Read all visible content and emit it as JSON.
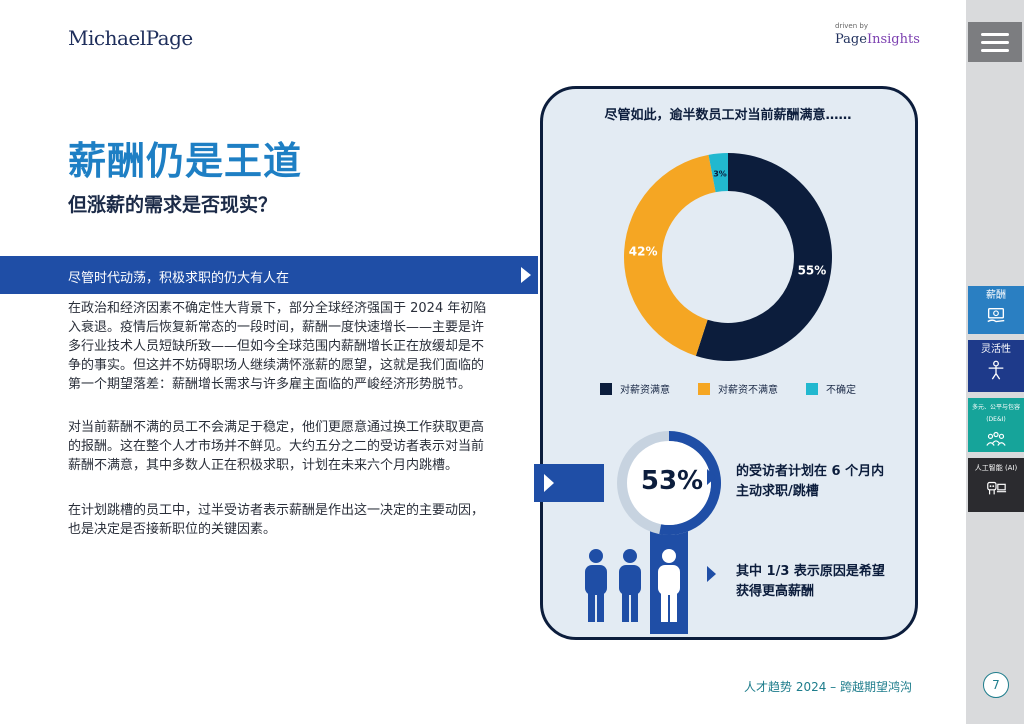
{
  "header": {
    "logo": "MichaelPage",
    "driven_by": "driven by",
    "page_insights_a": "Page",
    "page_insights_b": "Insights"
  },
  "title": "薪酬仍是王道",
  "subtitle": "但涨薪的需求是否现实？",
  "banner": "尽管时代动荡，积极求职的仍大有人在",
  "paragraphs": [
    "在政治和经济因素不确定性大背景下，部分全球经济强国于 2024 年初陷入衰退。疫情后恢复新常态的一段时间，薪酬一度快速增长——主要是许多行业技术人员短缺所致——但如今全球范围内薪酬增长正在放缓却是不争的事实。但这并不妨碍职场人继续满怀涨薪的愿望，这就是我们面临的第一个期望落差：薪酬增长需求与许多雇主面临的严峻经济形势脱节。",
    "对当前薪酬不满的员工不会满足于稳定，他们更愿意通过换工作获取更高的报酬。这在整个人才市场并不鲜见。大约五分之二的受访者表示对当前薪酬不满意，其中多数人正在积极求职，计划在未来六个月内跳槽。",
    "在计划跳槽的员工中，过半受访者表示薪酬是作出这一决定的主要动因，也是决定是否接新职位的关键因素。"
  ],
  "panel": {
    "title": "尽管如此，逾半数员工对当前薪酬满意……",
    "stat_pct": "53%",
    "stat_text": "的受访者计划在 6 个月内主动求职/跳槽",
    "stat_fraction": 0.53,
    "reason_text": "其中 1/3 表示原因是希望获得更高薪酬"
  },
  "chart_data": {
    "type": "pie",
    "donut": true,
    "categories": [
      "对薪资满意",
      "对薪资不满意",
      "不确定"
    ],
    "values": [
      55,
      42,
      3
    ],
    "labels": [
      "55%",
      "42%",
      "3%"
    ],
    "colors": [
      "#0c1d3c",
      "#f5a623",
      "#22b8cf"
    ],
    "legend_position": "bottom"
  },
  "sidebar": {
    "tabs": [
      "薪酬",
      "灵活性",
      "多元、公平与包容 (DE&I)",
      "人工智能 (AI)"
    ],
    "page_number": "7"
  },
  "footer": "人才趋势 2024 – 跨越期望鸿沟",
  "colors": {
    "brand_blue": "#1e7fc4",
    "banner_blue": "#1f4ea6",
    "navy": "#0c1d3c",
    "orange": "#f5a623",
    "cyan": "#22b8cf",
    "teal": "#1e7d8c"
  }
}
